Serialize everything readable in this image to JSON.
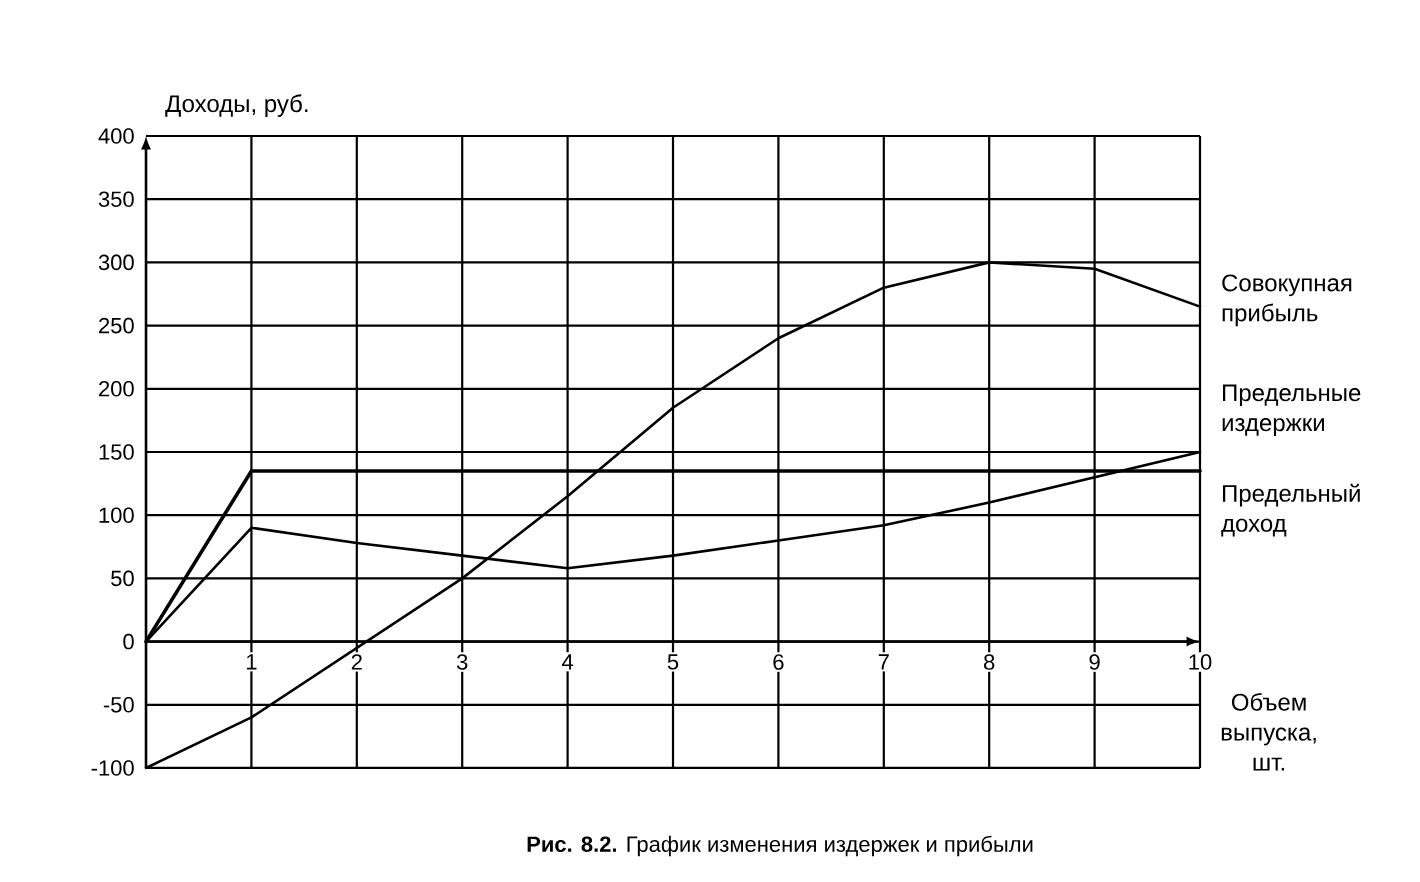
{
  "chart_data": {
    "type": "line",
    "xlabel": "Объем выпуска, шт.",
    "ylabel": "Доходы, руб.",
    "annotations": [
      "**Рис. 8.2.** График изменения издержек и прибыли"
    ],
    "x": [
      0,
      1,
      2,
      3,
      4,
      5,
      6,
      7,
      8,
      9,
      10
    ],
    "series": [
      {
        "name": "Совокупная прибыль",
        "color": "#000000",
        "values": [
          -100,
          -60,
          -5,
          50,
          115,
          185,
          240,
          280,
          300,
          295,
          265
        ]
      },
      {
        "name": "Предельные издержки",
        "color": "#000000",
        "values": [
          0,
          90,
          78,
          68,
          58,
          68,
          80,
          92,
          110,
          130,
          150
        ]
      },
      {
        "name": "Предельный доход",
        "color": "#000000",
        "values": [
          0,
          135,
          135,
          135,
          135,
          135,
          135,
          135,
          135,
          135,
          135
        ]
      }
    ],
    "xlim": [
      0,
      10
    ],
    "ylim": [
      -100,
      400
    ],
    "xticks": [
      1,
      2,
      3,
      4,
      5,
      6,
      7,
      8,
      9,
      10
    ],
    "yticks": [
      -100,
      -50,
      0,
      50,
      100,
      150,
      200,
      250,
      300,
      350,
      400
    ],
    "grid": true,
    "marker": "none",
    "line_style": "solid"
  }
}
